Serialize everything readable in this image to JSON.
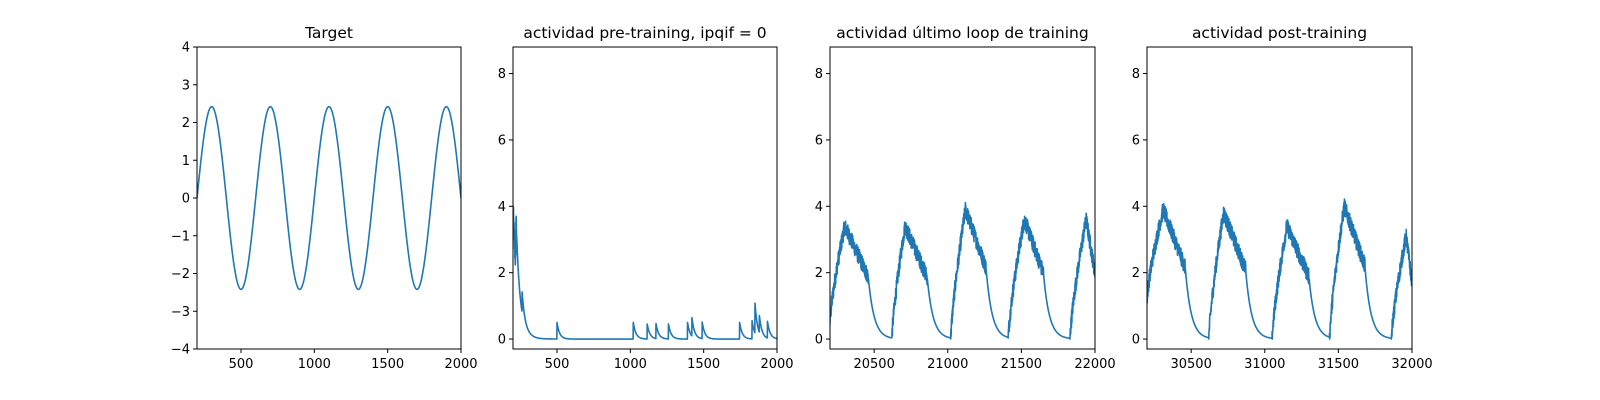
{
  "chart_data": [
    {
      "type": "line",
      "title": "Target",
      "xlabel": "",
      "ylabel": "",
      "xlim": [
        200,
        2000
      ],
      "ylim": [
        -4,
        4
      ],
      "xticks": [
        500,
        1000,
        1500,
        2000
      ],
      "yticks": [
        -4,
        -3,
        -2,
        -1,
        0,
        1,
        2,
        3,
        4
      ],
      "grid": false,
      "line_color": "#1f77b4",
      "series": [
        {
          "kind": "sine",
          "amplitude": 2.42,
          "period": 400,
          "phase_zero_x": 200,
          "x_range": [
            200,
            2000
          ]
        }
      ]
    },
    {
      "type": "line",
      "title": "actividad pre-training, ipqif = 0",
      "xlabel": "",
      "ylabel": "",
      "xlim": [
        200,
        2000
      ],
      "ylim": [
        -0.3,
        8.8
      ],
      "xticks": [
        500,
        1000,
        1500,
        2000
      ],
      "yticks": [
        0,
        2,
        4,
        6,
        8
      ],
      "grid": false,
      "line_color": "#1f77b4",
      "series": [
        {
          "kind": "decay_spikes",
          "x_range": [
            200,
            2000
          ],
          "initial_value": 3.9,
          "initial_decay": 35,
          "spike_decay": 18,
          "spikes": [
            {
              "x": 220,
              "h": 1.6
            },
            {
              "x": 262,
              "h": 0.6
            },
            {
              "x": 500,
              "h": 0.5
            },
            {
              "x": 1020,
              "h": 0.5
            },
            {
              "x": 1115,
              "h": 0.45
            },
            {
              "x": 1175,
              "h": 0.45
            },
            {
              "x": 1260,
              "h": 0.45
            },
            {
              "x": 1390,
              "h": 0.5
            },
            {
              "x": 1420,
              "h": 0.55
            },
            {
              "x": 1490,
              "h": 0.5
            },
            {
              "x": 1745,
              "h": 0.5
            },
            {
              "x": 1830,
              "h": 0.55
            },
            {
              "x": 1850,
              "h": 0.9
            },
            {
              "x": 1880,
              "h": 0.5
            },
            {
              "x": 1935,
              "h": 0.5
            }
          ]
        }
      ]
    },
    {
      "type": "line",
      "title": "actividad último loop de training",
      "xlabel": "",
      "ylabel": "",
      "xlim": [
        20200,
        22000
      ],
      "ylim": [
        -0.3,
        8.8
      ],
      "xticks": [
        20500,
        21000,
        21500,
        22000
      ],
      "yticks": [
        0,
        2,
        4,
        6,
        8
      ],
      "grid": false,
      "line_color": "#1f77b4",
      "series": [
        {
          "kind": "active_bursts",
          "x_range": [
            20200,
            22000
          ],
          "decay": 40,
          "bursts": [
            {
              "start": 20200,
              "peak_x": 20300,
              "peak": 3.4,
              "end": 20460,
              "start_level": 0.5
            },
            {
              "start": 20620,
              "peak_x": 20710,
              "peak": 3.4,
              "end": 20860
            },
            {
              "start": 21020,
              "peak_x": 21120,
              "peak": 3.9,
              "end": 21260
            },
            {
              "start": 21410,
              "peak_x": 21520,
              "peak": 3.6,
              "end": 21650
            },
            {
              "start": 21830,
              "peak_x": 21940,
              "peak": 3.6,
              "end": 22000
            }
          ]
        }
      ]
    },
    {
      "type": "line",
      "title": "actividad post-training",
      "xlabel": "",
      "ylabel": "",
      "xlim": [
        30200,
        32000
      ],
      "ylim": [
        -0.3,
        8.8
      ],
      "xticks": [
        30500,
        31000,
        31500,
        32000
      ],
      "yticks": [
        0,
        2,
        4,
        6,
        8
      ],
      "grid": false,
      "line_color": "#1f77b4",
      "series": [
        {
          "kind": "active_bursts",
          "x_range": [
            30200,
            32000
          ],
          "decay": 40,
          "bursts": [
            {
              "start": 30200,
              "peak_x": 30310,
              "peak": 3.9,
              "end": 30460,
              "start_level": 1.2
            },
            {
              "start": 30620,
              "peak_x": 30720,
              "peak": 3.8,
              "end": 30870
            },
            {
              "start": 31050,
              "peak_x": 31150,
              "peak": 3.4,
              "end": 31300
            },
            {
              "start": 31440,
              "peak_x": 31540,
              "peak": 4.0,
              "end": 31680
            },
            {
              "start": 31860,
              "peak_x": 31960,
              "peak": 3.1,
              "end": 32000
            }
          ]
        }
      ]
    }
  ]
}
